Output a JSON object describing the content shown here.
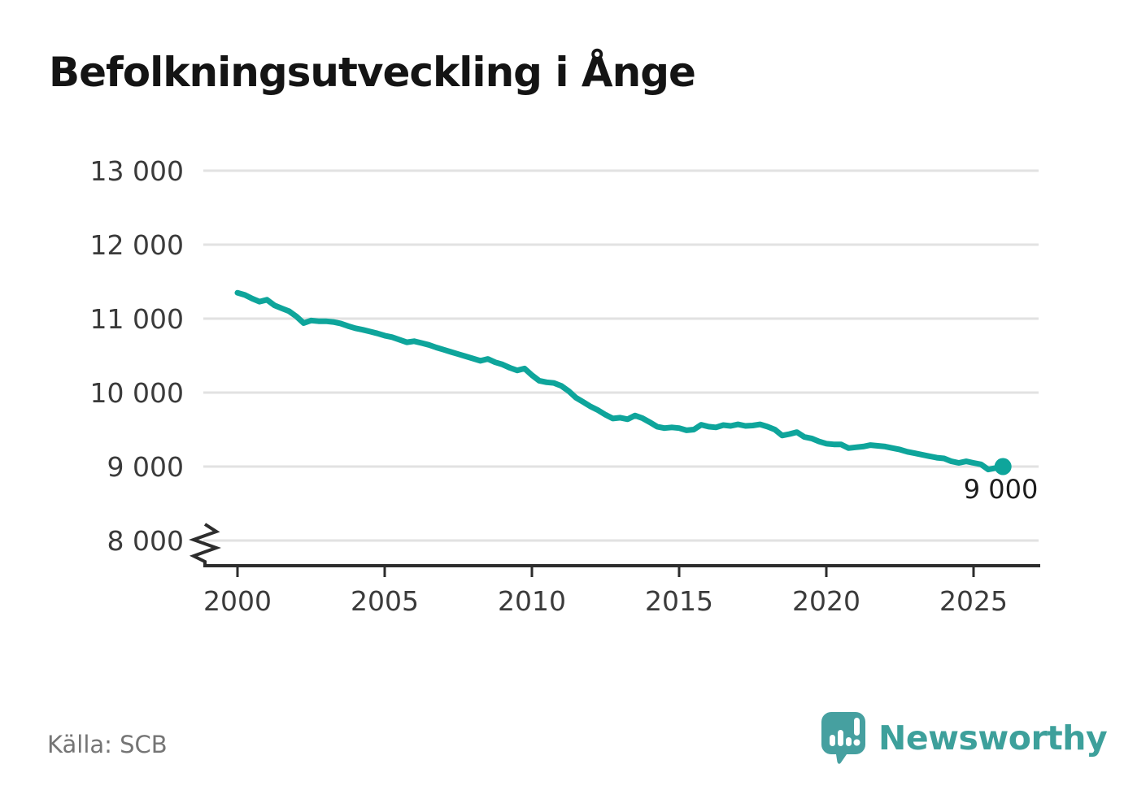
{
  "title": "Befolkningsutveckling i Ånge",
  "source": "Källa: SCB",
  "logo": {
    "text": "Newsworthy",
    "icon": "newsworthy-speech-bubble-bar-chart-icon",
    "color": "#46a0a0"
  },
  "chart_data": {
    "type": "line",
    "title": "Befolkningsutveckling i Ånge",
    "xlabel": "",
    "ylabel": "",
    "grid": "horizontal",
    "legend": "none",
    "axis_break_at_bottom": true,
    "ylim_displayed": [
      8000,
      13000
    ],
    "xlim_displayed": [
      1998.8,
      2027.3
    ],
    "y_ticks": {
      "values": [
        13000,
        12000,
        11000,
        10000,
        9000,
        8000
      ],
      "labels": [
        "13 000",
        "12 000",
        "11 000",
        "10 000",
        "9 000",
        "8 000"
      ]
    },
    "x_ticks": {
      "values": [
        2000,
        2005,
        2010,
        2015,
        2020,
        2025
      ],
      "labels": [
        "2000",
        "2005",
        "2010",
        "2015",
        "2020",
        "2025"
      ]
    },
    "line_color": "#0ea59b",
    "gridline_color": "#e2e2e2",
    "axis_color": "#2d2d2d",
    "tick_label_color": "#3b3b3b",
    "series": [
      {
        "name": "Befolkning",
        "x_start": 2000,
        "x_step": 0.25,
        "values": [
          11350,
          11320,
          11270,
          11230,
          11255,
          11180,
          11140,
          11100,
          11030,
          10940,
          10975,
          10965,
          10965,
          10955,
          10935,
          10900,
          10870,
          10850,
          10825,
          10800,
          10770,
          10750,
          10715,
          10680,
          10695,
          10670,
          10645,
          10610,
          10580,
          10550,
          10520,
          10490,
          10460,
          10430,
          10455,
          10410,
          10380,
          10335,
          10300,
          10325,
          10235,
          10160,
          10140,
          10130,
          10090,
          10020,
          9930,
          9870,
          9810,
          9760,
          9700,
          9650,
          9660,
          9640,
          9690,
          9655,
          9600,
          9540,
          9520,
          9530,
          9520,
          9490,
          9500,
          9565,
          9540,
          9530,
          9560,
          9550,
          9570,
          9550,
          9555,
          9570,
          9540,
          9500,
          9420,
          9440,
          9465,
          9400,
          9380,
          9340,
          9310,
          9300,
          9300,
          9250,
          9260,
          9270,
          9290,
          9280,
          9270,
          9250,
          9230,
          9200,
          9180,
          9160,
          9140,
          9120,
          9110,
          9070,
          9050,
          9070,
          9050,
          9030,
          8960,
          8980,
          9000
        ]
      }
    ],
    "end_point": {
      "x": 2026,
      "value": 9000,
      "label": "9 000"
    }
  }
}
